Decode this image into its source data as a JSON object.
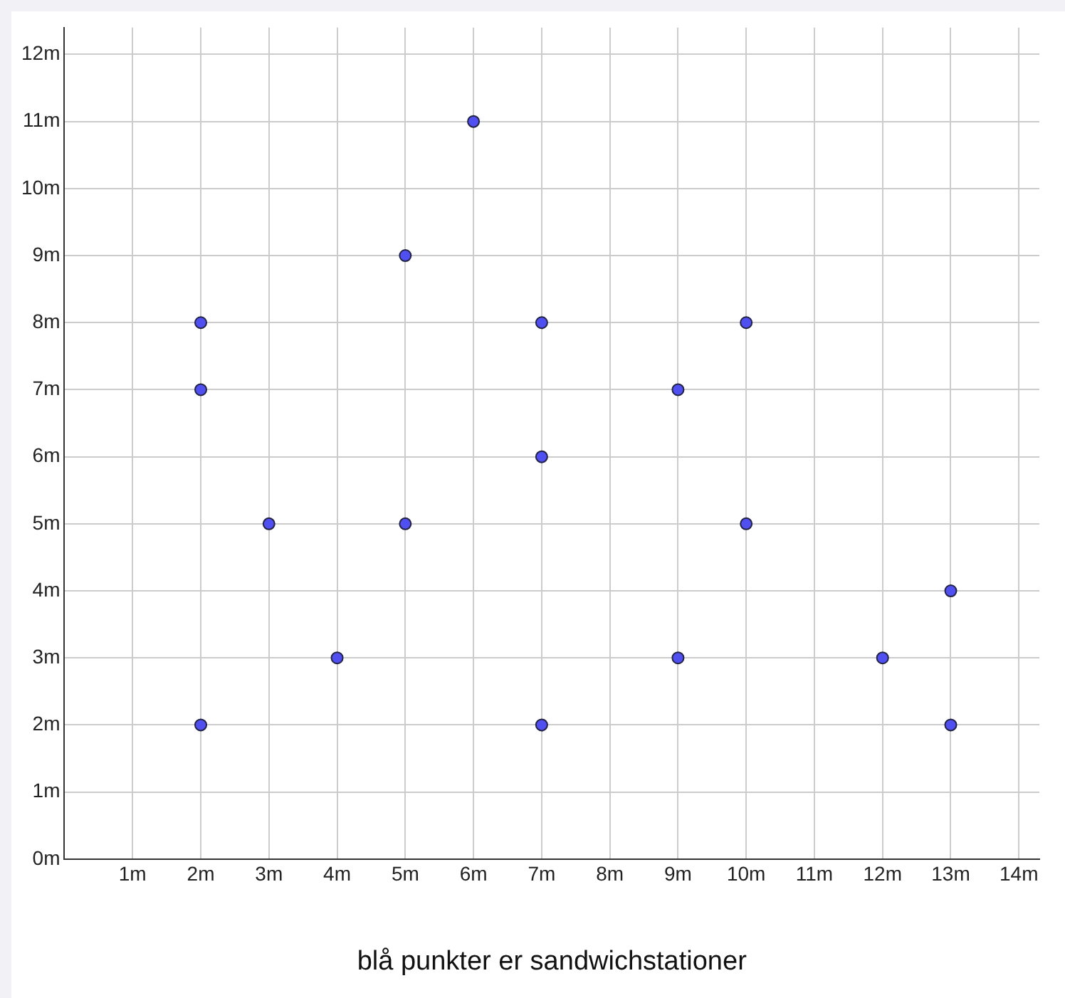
{
  "chart_data": {
    "type": "scatter",
    "xlabel": "blå punkter er sandwichstationer",
    "x": [
      6,
      5,
      2,
      7,
      10,
      2,
      9,
      7,
      3,
      5,
      10,
      13,
      4,
      9,
      12,
      2,
      7,
      13
    ],
    "values": [
      11,
      9,
      8,
      8,
      8,
      7,
      7,
      6,
      5,
      5,
      5,
      4,
      3,
      3,
      3,
      2,
      2,
      2
    ],
    "color": "#5050f0",
    "marker": "circle",
    "grid": true,
    "xlim": [
      0,
      14.3
    ],
    "ylim": [
      0,
      12.4
    ],
    "xticks": [
      {
        "value": 1,
        "label": "1m"
      },
      {
        "value": 2,
        "label": "2m"
      },
      {
        "value": 3,
        "label": "3m"
      },
      {
        "value": 4,
        "label": "4m"
      },
      {
        "value": 5,
        "label": "5m"
      },
      {
        "value": 6,
        "label": "6m"
      },
      {
        "value": 7,
        "label": "7m"
      },
      {
        "value": 8,
        "label": "8m"
      },
      {
        "value": 9,
        "label": "9m"
      },
      {
        "value": 10,
        "label": "10m"
      },
      {
        "value": 11,
        "label": "11m"
      },
      {
        "value": 12,
        "label": "12m"
      },
      {
        "value": 13,
        "label": "13m"
      },
      {
        "value": 14,
        "label": "14m"
      }
    ],
    "yticks": [
      {
        "value": 0,
        "label": "0m"
      },
      {
        "value": 1,
        "label": "1m"
      },
      {
        "value": 2,
        "label": "2m"
      },
      {
        "value": 3,
        "label": "3m"
      },
      {
        "value": 4,
        "label": "4m"
      },
      {
        "value": 5,
        "label": "5m"
      },
      {
        "value": 6,
        "label": "6m"
      },
      {
        "value": 7,
        "label": "7m"
      },
      {
        "value": 8,
        "label": "8m"
      },
      {
        "value": 9,
        "label": "9m"
      },
      {
        "value": 10,
        "label": "10m"
      },
      {
        "value": 11,
        "label": "11m"
      },
      {
        "value": 12,
        "label": "12m"
      }
    ]
  }
}
